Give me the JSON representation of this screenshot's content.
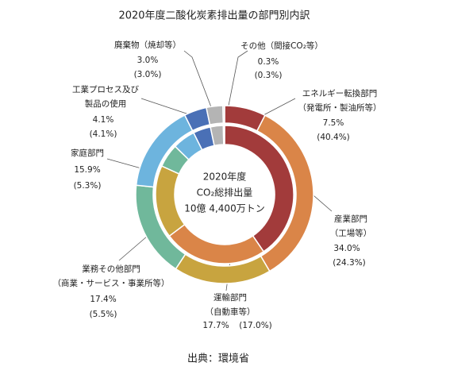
{
  "chart_data": {
    "type": "donut",
    "title": "2020年度二酸化炭素排出量の部門別内訳",
    "center_text": [
      "2020年度",
      "CO₂総排出量",
      "10億 4,400万トン"
    ],
    "source": "出典：環境省",
    "categories": [
      [
        "エネルギー転換部門",
        "（発電所・製油所等）"
      ],
      [
        "産業部門",
        "（工場等）"
      ],
      [
        "運輸部門",
        "（自動車等）"
      ],
      [
        "業務その他部門",
        "（商業・サービス・事業所等）"
      ],
      [
        "家庭部門"
      ],
      [
        "工業プロセス及び",
        "製品の使用"
      ],
      [
        "廃棄物（焼却等）"
      ],
      [
        "その他（間接CO₂等）"
      ]
    ],
    "colors": [
      "#a23b3b",
      "#da8548",
      "#c8a43f",
      "#70b89b",
      "#6db4de",
      "#4a70b6",
      "#b4b4b4",
      "#d4d4d4"
    ],
    "series": [
      {
        "values": [
          7.5,
          34.0,
          17.7,
          17.4,
          15.9,
          4.1,
          3.0,
          0.3
        ],
        "value_labels": [
          "7.5%",
          "34.0%",
          "17.7%",
          "17.4%",
          "15.9%",
          "4.1%",
          "3.0%",
          "0.3%"
        ]
      },
      {
        "values": [
          40.4,
          24.3,
          17.0,
          5.5,
          5.3,
          4.1,
          3.0,
          0.3
        ],
        "value_labels": [
          "(40.4%)",
          "(24.3%)",
          "(17.0%)",
          "(5.5%)",
          "(5.3%)",
          "(4.1%)",
          "(3.0%)",
          "(0.3%)"
        ]
      }
    ]
  }
}
